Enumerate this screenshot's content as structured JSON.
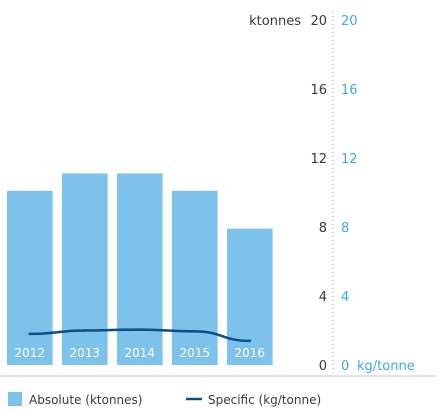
{
  "chart_data": {
    "type": "bar",
    "categories": [
      "2012",
      "2013",
      "2014",
      "2015",
      "2016"
    ],
    "series": [
      {
        "name": "Absolute (ktonnes)",
        "type": "bar",
        "axis": "left",
        "values": [
          10.1,
          11.1,
          11.1,
          10.1,
          7.9
        ]
      },
      {
        "name": "Specific (kg/tonne)",
        "type": "line",
        "axis": "right",
        "values": [
          1.8,
          2.0,
          2.05,
          1.95,
          1.4
        ]
      }
    ],
    "y_left": {
      "label": "ktonnes",
      "ticks": [
        0,
        4,
        8,
        12,
        16,
        20
      ],
      "ylim": [
        0,
        20
      ]
    },
    "y_right": {
      "label": "kg/tonne",
      "ticks": [
        0,
        4,
        8,
        12,
        16,
        20
      ],
      "ylim": [
        0,
        20
      ]
    },
    "grid": false,
    "legend": {
      "position": "bottom"
    },
    "colors": {
      "bar": "#7dc2ea",
      "line": "#0b4f86",
      "right_axis": "#3ea9de",
      "text": "#3a3a3a"
    }
  }
}
